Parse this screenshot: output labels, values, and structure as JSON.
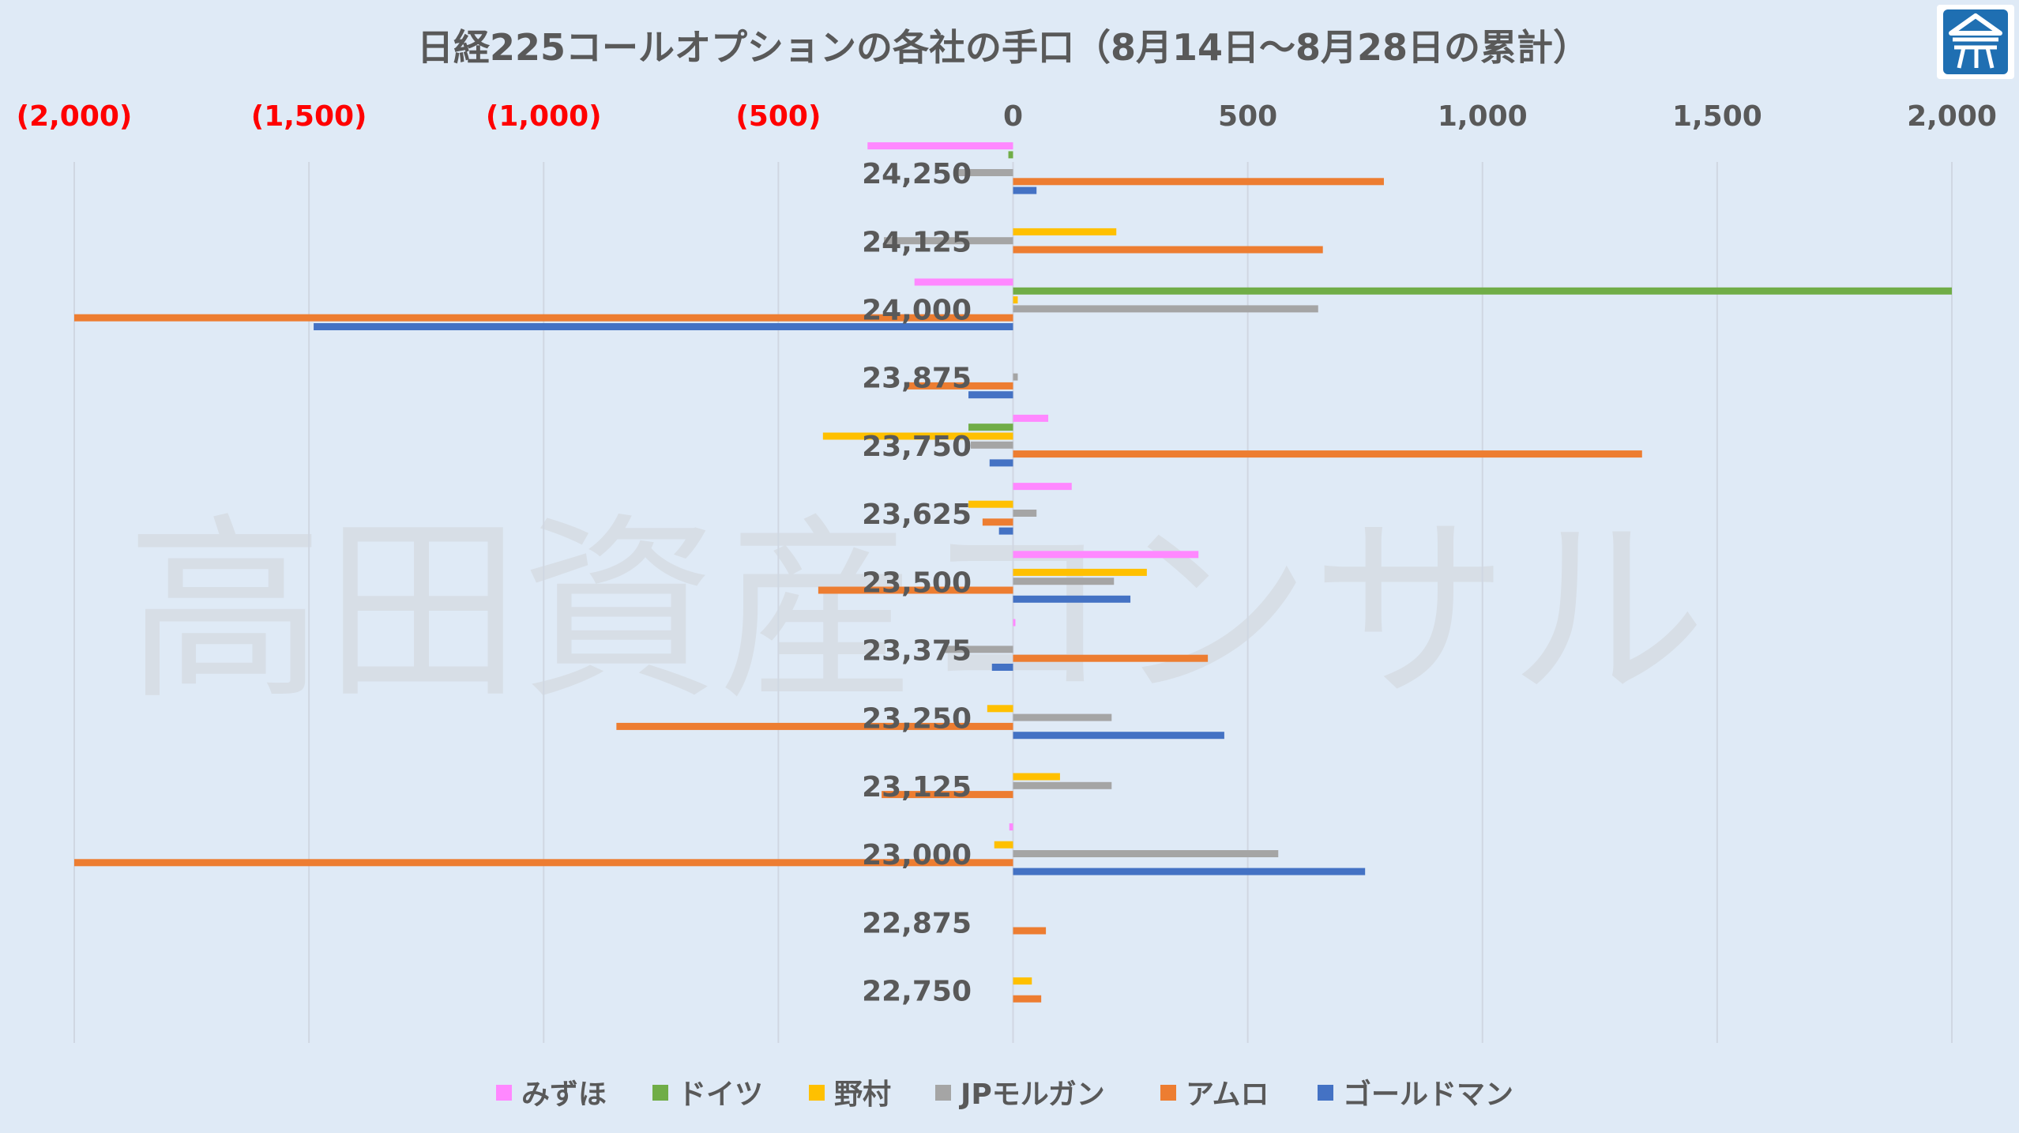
{
  "watermark": "高田資産コンサル",
  "chart_data": {
    "type": "bar",
    "orientation": "horizontal",
    "title": "日経225コールオプションの各社の手口（8月14日～8月28日の累計）",
    "xlim": [
      -2000,
      2000
    ],
    "ticks": [
      {
        "value": -2000,
        "label": "(2,000)",
        "color": "#ff0000"
      },
      {
        "value": -1500,
        "label": "(1,500)",
        "color": "#ff0000"
      },
      {
        "value": -1000,
        "label": "(1,000)",
        "color": "#ff0000"
      },
      {
        "value": -500,
        "label": "(500)",
        "color": "#ff0000"
      },
      {
        "value": 0,
        "label": "0",
        "color": "#595959"
      },
      {
        "value": 500,
        "label": "500",
        "color": "#595959"
      },
      {
        "value": 1000,
        "label": "1,000",
        "color": "#595959"
      },
      {
        "value": 1500,
        "label": "1,500",
        "color": "#595959"
      },
      {
        "value": 2000,
        "label": "2,000",
        "color": "#595959"
      }
    ],
    "grid": true,
    "legend_position": "bottom",
    "categories": [
      "24,250",
      "24,125",
      "24,000",
      "23,875",
      "23,750",
      "23,625",
      "23,500",
      "23,375",
      "23,250",
      "23,125",
      "23,000",
      "22,875",
      "22,750"
    ],
    "series": [
      {
        "name": "みずほ",
        "color": "#ff88ff",
        "values": [
          -310,
          0,
          -210,
          0,
          75,
          125,
          395,
          5,
          0,
          0,
          -8,
          0,
          0
        ]
      },
      {
        "name": "ドイツ",
        "color": "#70ad47",
        "values": [
          -10,
          0,
          2000,
          0,
          -95,
          0,
          0,
          0,
          0,
          0,
          0,
          0,
          0
        ]
      },
      {
        "name": "野村",
        "color": "#ffc000",
        "values": [
          0,
          220,
          10,
          0,
          -405,
          -95,
          285,
          0,
          -55,
          100,
          -40,
          0,
          40
        ]
      },
      {
        "name": "JPモルガン",
        "color": "#a5a5a5",
        "values": [
          -120,
          -275,
          650,
          10,
          -90,
          50,
          215,
          -150,
          210,
          210,
          565,
          0,
          0
        ]
      },
      {
        "name": "アムロ",
        "color": "#ed7d31",
        "values": [
          790,
          660,
          -2000,
          -225,
          1340,
          -65,
          -415,
          415,
          -845,
          -280,
          -2000,
          70,
          60
        ]
      },
      {
        "name": "ゴールドマン",
        "color": "#4472c4",
        "values": [
          50,
          0,
          -1490,
          -95,
          -50,
          -30,
          250,
          -45,
          450,
          0,
          750,
          0,
          0
        ]
      }
    ]
  }
}
